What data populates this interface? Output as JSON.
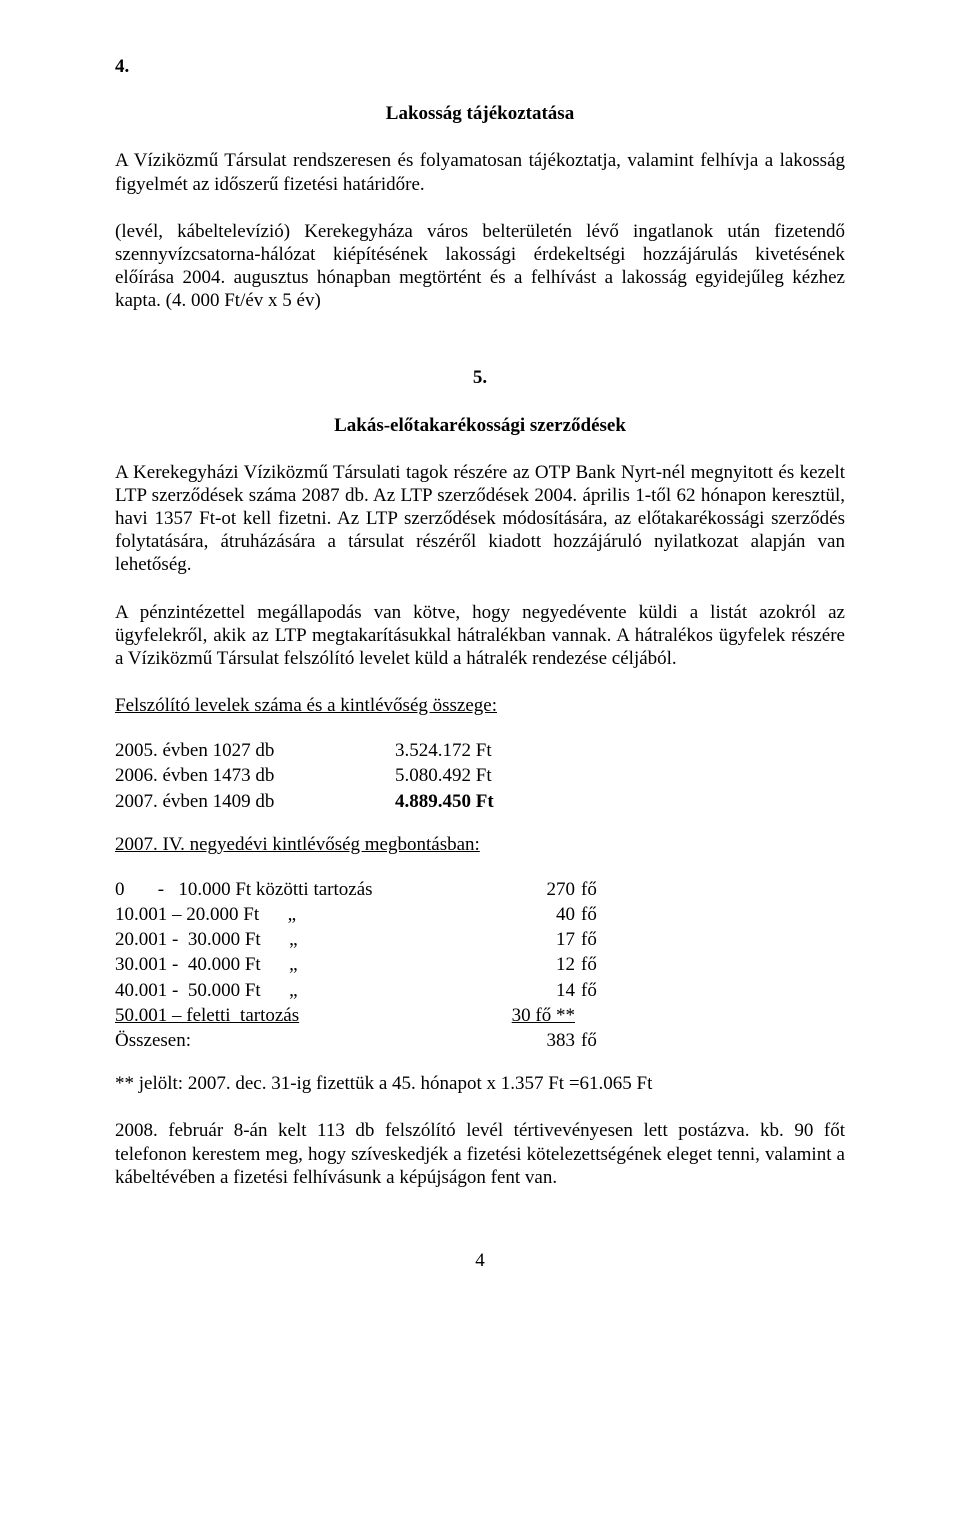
{
  "page": {
    "number": "4"
  },
  "section4": {
    "number": "4.",
    "title": "Lakosság tájékoztatása",
    "p1": "A Víziközmű Társulat rendszeresen és folyamatosan tájékoztatja, valamint felhívja a lakosság figyelmét az időszerű fizetési határidőre.",
    "p2": "(levél, kábeltelevízió) Kerekegyháza város belterületén lévő ingatlanok után fizetendő szennyvízcsatorna-hálózat kiépítésének lakossági érdekeltségi hozzájárulás kivetésének előírása 2004. augusztus hónapban megtörtént és a felhívást a lakosság egyidejűleg kézhez kapta. (4. 000 Ft/év x 5 év)"
  },
  "section5": {
    "number": "5.",
    "title": "Lakás-előtakarékossági szerződések",
    "p1": "A Kerekegyházi Víziközmű Társulati tagok részére az OTP Bank Nyrt-nél megnyitott és kezelt LTP szerződések száma 2087 db. Az LTP szerződések 2004. április 1-től 62 hónapon keresztül, havi 1357 Ft-ot kell fizetni. Az LTP szerződések módosítására, az előtakarékossági szerződés folytatására, átruházására a társulat részéről kiadott hozzájáruló nyilatkozat alapján van lehetőség.",
    "p2": "A pénzintézettel megállapodás van kötve, hogy negyedévente küldi a listát azokról az ügyfelekről, akik az LTP megtakarításukkal hátralékban vannak. A hátralékos ügyfelek részére a Víziközmű Társulat felszólító levelet küld a hátralék rendezése céljából.",
    "subhead1": "Felszólító levelek száma és a kintlévőség összege:",
    "letters": [
      {
        "label": "2005. évben   1027 db",
        "amount": "3.524.172 Ft"
      },
      {
        "label": "2006. évben   1473 db",
        "amount": "5.080.492 Ft"
      },
      {
        "label": "2007. évben   1409 db",
        "amount_bold": "4.889.450 Ft"
      }
    ],
    "subhead2": "2007. IV. negyedévi kintlévőség megbontásban:",
    "breakdown": [
      {
        "range": "0       -   10.000 Ft közötti tartozás",
        "count": "270",
        "unit": "fő"
      },
      {
        "range": "10.001 – 20.000 Ft      „",
        "count": "40",
        "unit": "fő"
      },
      {
        "range": "20.001 -  30.000 Ft      „",
        "count": "17",
        "unit": "fő"
      },
      {
        "range": "30.001 -  40.000 Ft      „",
        "count": "12",
        "unit": "fő"
      },
      {
        "range": "40.001 -  50.000 Ft      „",
        "count": "14",
        "unit": "fő"
      }
    ],
    "breakdown_last": {
      "range_underline": "50.001 – feletti  tartozás",
      "count_underline": "30 fő  **"
    },
    "total": {
      "label": "Összesen:",
      "count": "383",
      "unit": "fő"
    },
    "note": "** jelölt: 2007. dec. 31-ig fizettük a 45. hónapot x 1.357 Ft =61.065 Ft",
    "p3": "2008. február 8-án kelt 113 db felszólító levél tértivevényesen lett postázva. kb. 90 főt telefonon kerestem meg, hogy szíveskedjék a fizetési kötelezettségének eleget tenni, valamint a kábeltévében a fizetési felhívásunk a képújságon fent van."
  }
}
